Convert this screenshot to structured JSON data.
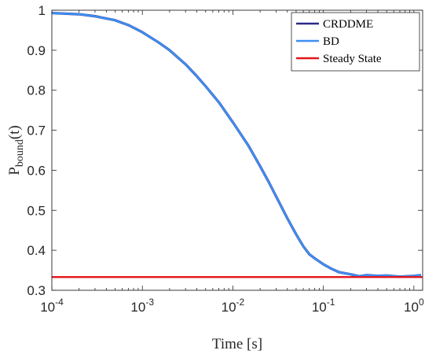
{
  "chart_data": {
    "type": "line",
    "xscale": "log",
    "xlim": [
      0.0001,
      1.25
    ],
    "ylim": [
      0.3,
      1.0
    ],
    "grid": false,
    "legend_position": "top-right",
    "xlabel": "Time [s]",
    "ylabel": {
      "main": "P",
      "subscript": "bound",
      "suffix": "(t)"
    },
    "xticks": [
      {
        "value": 0.0001,
        "base": "10",
        "exp": "-4"
      },
      {
        "value": 0.001,
        "base": "10",
        "exp": "-3"
      },
      {
        "value": 0.01,
        "base": "10",
        "exp": "-2"
      },
      {
        "value": 0.1,
        "base": "10",
        "exp": "-1"
      },
      {
        "value": 1,
        "base": "10",
        "exp": "0"
      }
    ],
    "yticks": [
      {
        "value": 0.3,
        "label": "0.3"
      },
      {
        "value": 0.4,
        "label": "0.4"
      },
      {
        "value": 0.5,
        "label": "0.5"
      },
      {
        "value": 0.6,
        "label": "0.6"
      },
      {
        "value": 0.7,
        "label": "0.7"
      },
      {
        "value": 0.8,
        "label": "0.8"
      },
      {
        "value": 0.9,
        "label": "0.9"
      },
      {
        "value": 1.0,
        "label": "1"
      }
    ],
    "series": [
      {
        "name": "CRDDME",
        "color": "#2c2a8a",
        "x": [
          0.0001,
          0.0002,
          0.0003,
          0.0005,
          0.0007,
          0.001,
          0.0015,
          0.002,
          0.003,
          0.004,
          0.005,
          0.007,
          0.01,
          0.015,
          0.02,
          0.025,
          0.03,
          0.04,
          0.05,
          0.06,
          0.07,
          0.08,
          0.1,
          0.12,
          0.15,
          0.2,
          0.25,
          0.3,
          0.4,
          0.5,
          0.7,
          1.0,
          1.2
        ],
        "y": [
          0.993,
          0.99,
          0.985,
          0.975,
          0.963,
          0.945,
          0.92,
          0.9,
          0.865,
          0.835,
          0.81,
          0.77,
          0.72,
          0.66,
          0.61,
          0.57,
          0.535,
          0.48,
          0.44,
          0.41,
          0.39,
          0.38,
          0.365,
          0.355,
          0.345,
          0.34,
          0.335,
          0.338,
          0.336,
          0.337,
          0.334,
          0.336,
          0.338
        ]
      },
      {
        "name": "BD",
        "color": "#3d8ef0",
        "x": [
          0.0001,
          0.0002,
          0.0003,
          0.0005,
          0.0007,
          0.001,
          0.0015,
          0.002,
          0.003,
          0.004,
          0.005,
          0.007,
          0.01,
          0.015,
          0.02,
          0.025,
          0.03,
          0.04,
          0.05,
          0.06,
          0.07,
          0.08,
          0.1,
          0.12,
          0.15,
          0.2,
          0.25,
          0.3,
          0.4,
          0.5,
          0.7,
          1.0,
          1.2
        ],
        "y": [
          0.993,
          0.99,
          0.985,
          0.975,
          0.963,
          0.945,
          0.92,
          0.9,
          0.865,
          0.835,
          0.81,
          0.77,
          0.72,
          0.66,
          0.61,
          0.57,
          0.535,
          0.48,
          0.44,
          0.41,
          0.39,
          0.38,
          0.365,
          0.355,
          0.345,
          0.34,
          0.335,
          0.338,
          0.336,
          0.337,
          0.334,
          0.336,
          0.338
        ]
      },
      {
        "name": "Steady State",
        "color": "#e4161b",
        "x": [
          0.0001,
          1.25
        ],
        "y": [
          0.333,
          0.333
        ]
      }
    ]
  }
}
